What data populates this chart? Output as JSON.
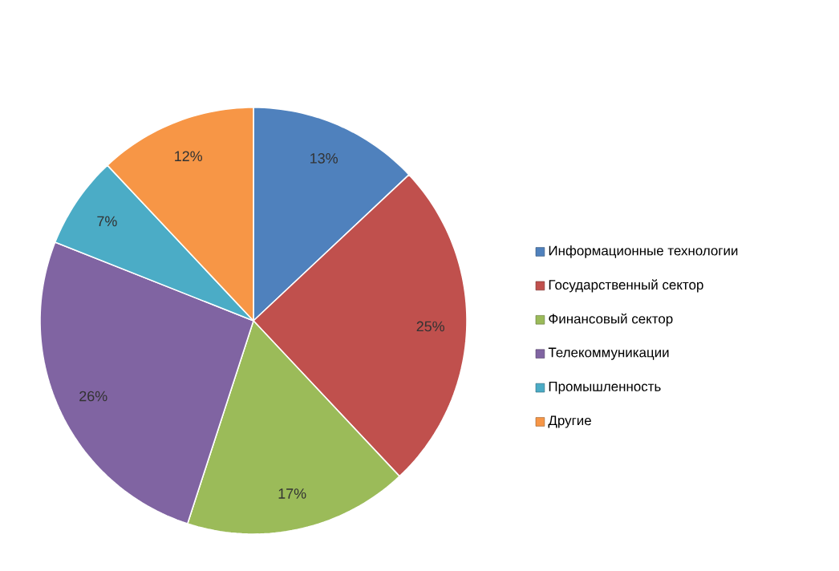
{
  "chart_data": {
    "type": "pie",
    "categories": [
      "Информационные технологии",
      "Государственный сектор",
      "Финансовый сектор",
      "Телекоммуникации",
      "Промышленность",
      "Другие"
    ],
    "values": [
      13,
      25,
      17,
      26,
      7,
      12
    ],
    "value_labels": [
      "13%",
      "25%",
      "17%",
      "26%",
      "7%",
      "12%"
    ],
    "colors": [
      "#4f81bd",
      "#c0504d",
      "#9bbb59",
      "#8064a2",
      "#4bacc6",
      "#f79646"
    ],
    "legend": "right"
  }
}
